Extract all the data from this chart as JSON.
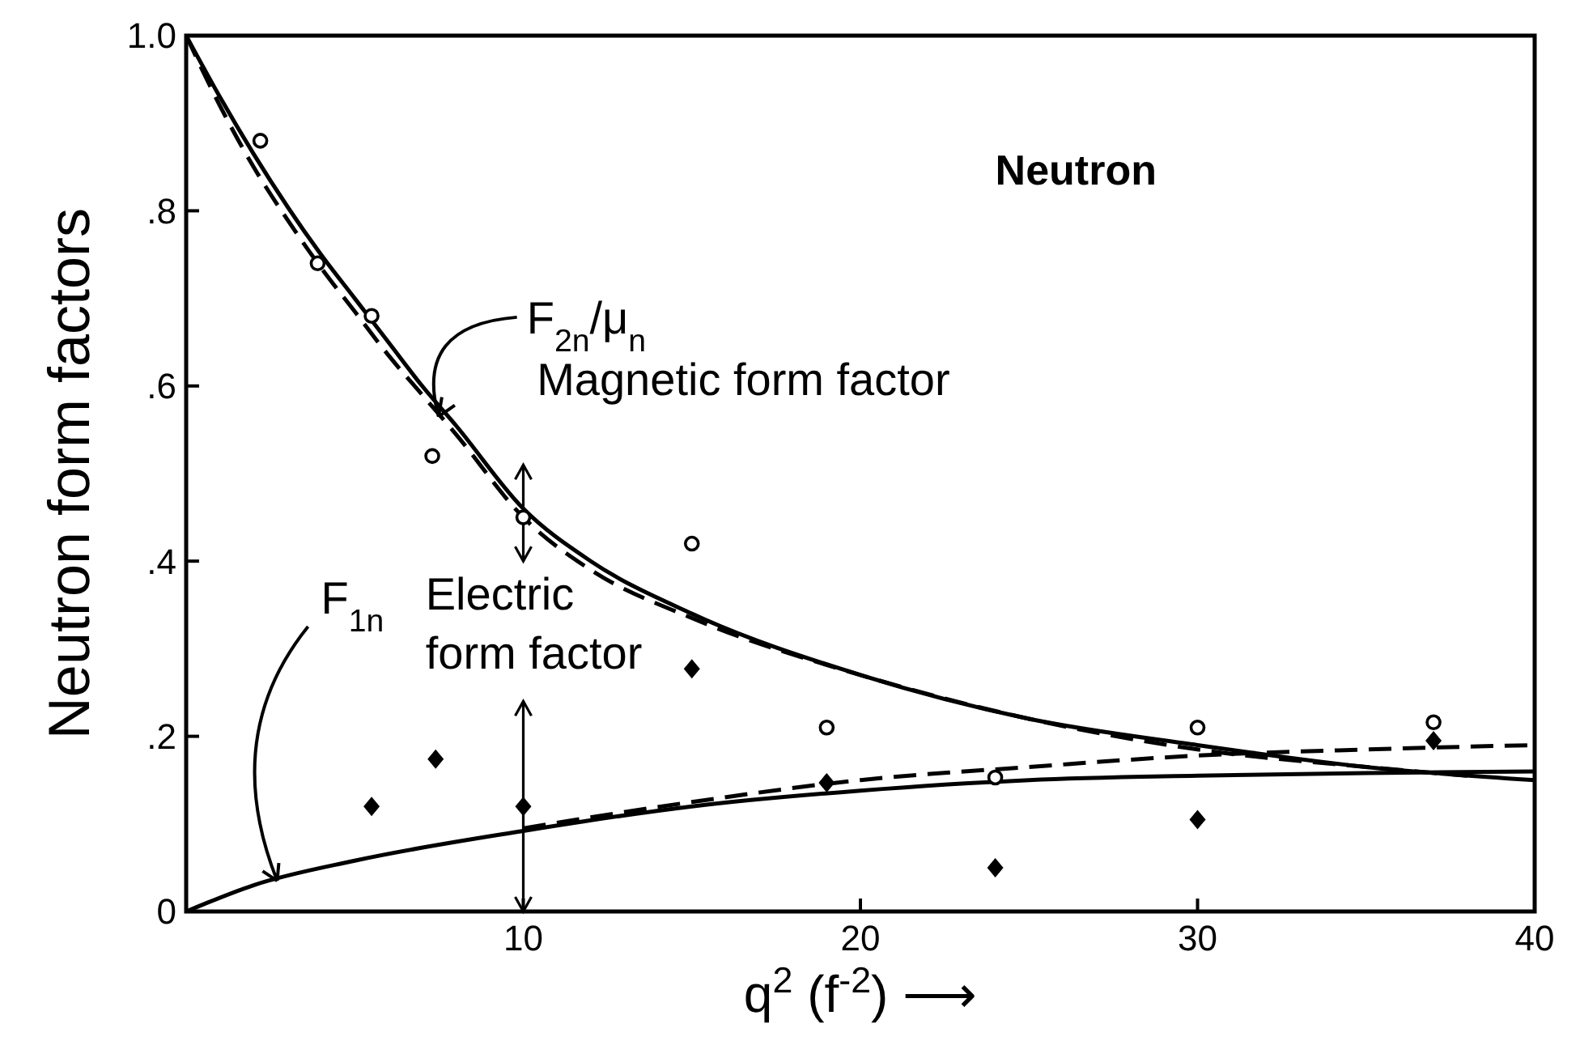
{
  "chart_data": {
    "type": "scatter",
    "xlabel": "q$^{2}$ (f$^{-2}$) ⟶",
    "ylabel": "Neutron form factors",
    "xlim": [
      0,
      40
    ],
    "xticks": [
      {
        "value": 0,
        "label": null
      },
      10,
      20,
      30,
      40
    ],
    "ylim": [
      0,
      1.0
    ],
    "yticks": [
      {
        "value": 0,
        "label": "0"
      },
      {
        "value": 0.2,
        "label": ".2"
      },
      {
        "value": 0.4,
        "label": ".4"
      },
      {
        "value": 0.6,
        "label": ".6"
      },
      {
        "value": 0.8,
        "label": ".8"
      },
      {
        "value": 1.0,
        "label": "1.0"
      }
    ],
    "grid": false,
    "series": [
      {
        "type": "line",
        "color": "#000000",
        "line_style": "solid",
        "x": [
          0,
          1,
          2,
          3,
          4,
          5,
          6,
          7,
          8,
          10,
          12,
          15,
          20,
          25,
          30,
          35,
          40
        ],
        "values": [
          1.0,
          0.93,
          0.865,
          0.805,
          0.75,
          0.7,
          0.65,
          0.6,
          0.555,
          0.46,
          0.4,
          0.34,
          0.27,
          0.22,
          0.19,
          0.165,
          0.15
        ]
      },
      {
        "type": "line",
        "color": "#000000",
        "line_style": "dashed",
        "x": [
          0,
          1,
          2,
          3,
          4,
          5,
          6,
          7,
          8,
          10,
          12,
          15,
          20,
          25,
          30,
          35,
          38
        ],
        "values": [
          1.0,
          0.92,
          0.85,
          0.79,
          0.735,
          0.685,
          0.635,
          0.59,
          0.545,
          0.45,
          0.39,
          0.335,
          0.27,
          0.22,
          0.185,
          0.165,
          0.155
        ]
      },
      {
        "type": "line",
        "color": "#000000",
        "line_style": "solid",
        "x": [
          0,
          2,
          5,
          10,
          15,
          20,
          25,
          30,
          35,
          40
        ],
        "values": [
          0,
          0.03,
          0.058,
          0.092,
          0.12,
          0.138,
          0.15,
          0.155,
          0.158,
          0.16
        ]
      },
      {
        "type": "line",
        "color": "#000000",
        "line_style": "dashed",
        "x": [
          10,
          15,
          20,
          25,
          30,
          35,
          40
        ],
        "values": [
          0.095,
          0.125,
          0.15,
          0.165,
          0.178,
          0.185,
          0.19
        ]
      },
      {
        "color": "#000000",
        "marker": "circle",
        "x": [
          2.2,
          3.9,
          5.5,
          7.3,
          10,
          15,
          19,
          24,
          30,
          37
        ],
        "values": [
          0.88,
          0.74,
          0.68,
          0.52,
          0.45,
          0.42,
          0.21,
          0.153,
          0.21,
          0.216
        ],
        "errors": [
          null,
          null,
          null,
          null,
          [
            0.4,
            0.51
          ],
          null,
          null,
          null,
          null,
          null
        ]
      },
      {
        "color": "#000000",
        "marker": "diamond",
        "x": [
          5.5,
          7.4,
          10,
          15,
          19,
          24,
          30,
          37
        ],
        "values": [
          0.12,
          0.174,
          0.12,
          0.277,
          0.147,
          0.05,
          0.105,
          0.195
        ],
        "errors": [
          null,
          null,
          [
            0.0,
            0.24
          ],
          null,
          null,
          null,
          null,
          null
        ]
      }
    ],
    "annotations": [
      "Neutron",
      {
        "text": "F$_{2n}$/μ$_{n}$",
        "x": 7.2,
        "y": 0.565
      },
      "Magnetic form factor",
      {
        "text": "F$_{1n}$",
        "x": 2.7,
        "y": 0.035
      },
      "Electric form factor"
    ]
  }
}
